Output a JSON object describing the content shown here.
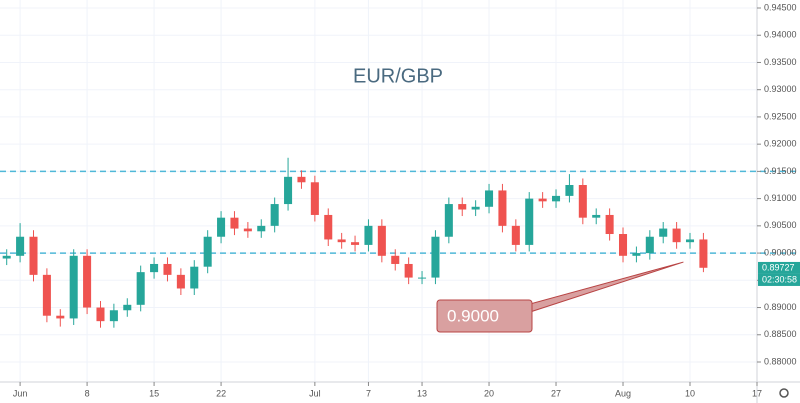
{
  "chart_data": {
    "type": "candlestick",
    "title": "EUR/GBP",
    "x": [
      -1,
      0,
      1,
      2,
      3,
      4,
      5,
      6,
      7,
      8,
      9,
      10,
      11,
      12,
      13,
      14,
      15,
      16,
      17,
      18,
      19,
      20,
      21,
      22,
      23,
      24,
      25,
      26,
      27,
      28,
      29,
      30,
      31,
      32,
      33,
      34,
      35,
      36,
      37,
      38,
      39,
      40,
      41,
      42,
      43,
      44,
      45,
      46,
      47,
      48,
      49,
      50,
      51
    ],
    "open": [
      0.899,
      0.8995,
      0.903,
      0.896,
      0.8885,
      0.888,
      0.8995,
      0.89,
      0.8875,
      0.8895,
      0.8905,
      0.8965,
      0.898,
      0.896,
      0.8935,
      0.8975,
      0.903,
      0.9065,
      0.9045,
      0.904,
      0.905,
      0.909,
      0.914,
      0.913,
      0.907,
      0.9025,
      0.902,
      0.9015,
      0.905,
      0.8995,
      0.898,
      0.8955,
      0.8955,
      0.903,
      0.909,
      0.908,
      0.9085,
      0.9115,
      0.905,
      0.9015,
      0.91,
      0.9095,
      0.9105,
      0.9125,
      0.9065,
      0.907,
      0.9035,
      0.8995,
      0.9,
      0.903,
      0.9045,
      0.902,
      0.9025
    ],
    "high": [
      0.9007,
      0.9055,
      0.9042,
      0.8972,
      0.8897,
      0.9007,
      0.9007,
      0.8912,
      0.8907,
      0.8917,
      0.8977,
      0.8992,
      0.8992,
      0.8972,
      0.8987,
      0.9042,
      0.9077,
      0.9077,
      0.9057,
      0.9062,
      0.9102,
      0.9175,
      0.9152,
      0.9142,
      0.9082,
      0.9037,
      0.9032,
      0.9062,
      0.9062,
      0.9007,
      0.8992,
      0.8967,
      0.9042,
      0.9102,
      0.9102,
      0.9097,
      0.9127,
      0.9127,
      0.9062,
      0.9112,
      0.9112,
      0.9117,
      0.9145,
      0.9137,
      0.9082,
      0.9082,
      0.9047,
      0.9012,
      0.9042,
      0.9057,
      0.9057,
      0.9037,
      0.9037
    ],
    "low": [
      0.8978,
      0.8983,
      0.8948,
      0.8873,
      0.8865,
      0.8868,
      0.8888,
      0.8863,
      0.8863,
      0.8883,
      0.8893,
      0.8953,
      0.8948,
      0.8923,
      0.8923,
      0.8963,
      0.9018,
      0.9033,
      0.9028,
      0.9028,
      0.9038,
      0.9078,
      0.9118,
      0.9058,
      0.9013,
      0.9008,
      0.9003,
      0.9003,
      0.8983,
      0.8968,
      0.8943,
      0.8943,
      0.8943,
      0.9018,
      0.9068,
      0.9068,
      0.9073,
      0.9038,
      0.9003,
      0.9003,
      0.9083,
      0.9083,
      0.9093,
      0.9053,
      0.9053,
      0.9023,
      0.8983,
      0.8983,
      0.8988,
      0.9018,
      0.9008,
      0.9008,
      0.8965
    ],
    "close": [
      0.8995,
      0.903,
      0.896,
      0.8885,
      0.888,
      0.8995,
      0.89,
      0.8875,
      0.8895,
      0.8905,
      0.8965,
      0.898,
      0.896,
      0.8935,
      0.8975,
      0.903,
      0.9065,
      0.9045,
      0.904,
      0.905,
      0.909,
      0.914,
      0.913,
      0.907,
      0.9025,
      0.902,
      0.9015,
      0.905,
      0.8995,
      0.898,
      0.8955,
      0.8955,
      0.903,
      0.909,
      0.908,
      0.9085,
      0.9115,
      0.905,
      0.9015,
      0.91,
      0.9095,
      0.9105,
      0.9125,
      0.9065,
      0.907,
      0.9035,
      0.8995,
      0.9,
      0.903,
      0.9045,
      0.902,
      0.9025,
      0.8973
    ],
    "up_color": "#26a69a",
    "down_color": "#ef5350",
    "xlim": [
      -1.5,
      55
    ],
    "xticks": [
      {
        "value": 0,
        "label": "Jun"
      },
      {
        "value": 5,
        "label": "8"
      },
      {
        "value": 10,
        "label": "15"
      },
      {
        "value": 15,
        "label": "22"
      },
      {
        "value": 22,
        "label": "Jul"
      },
      {
        "value": 26,
        "label": "7"
      },
      {
        "value": 30,
        "label": "13"
      },
      {
        "value": 35,
        "label": "20"
      },
      {
        "value": 40,
        "label": "27"
      },
      {
        "value": 45,
        "label": "Aug"
      },
      {
        "value": 50,
        "label": "10"
      },
      {
        "value": 55,
        "label": "17"
      }
    ],
    "ylim": [
      0.88,
      0.945
    ],
    "yticks": [
      {
        "value": 0.88,
        "label": "0.88000"
      },
      {
        "value": 0.885,
        "label": "0.88500"
      },
      {
        "value": 0.89,
        "label": "0.89000"
      },
      {
        "value": 0.895,
        "label": "0.89500"
      },
      {
        "value": 0.9,
        "label": "0.90000"
      },
      {
        "value": 0.905,
        "label": "0.90500"
      },
      {
        "value": 0.91,
        "label": "0.91000"
      },
      {
        "value": 0.915,
        "label": "0.91500"
      },
      {
        "value": 0.92,
        "label": "0.92000"
      },
      {
        "value": 0.925,
        "label": "0.92500"
      },
      {
        "value": 0.93,
        "label": "0.93000"
      },
      {
        "value": 0.935,
        "label": "0.93500"
      },
      {
        "value": 0.94,
        "label": "0.94000"
      },
      {
        "value": 0.945,
        "label": "0.94500"
      }
    ],
    "grid": true,
    "hlines": [
      0.9,
      0.915
    ],
    "hline_color": "#4fb8d8",
    "last_price": {
      "value": 0.89727,
      "label": "0.89727"
    },
    "countdown": "02:30:58",
    "annotation": {
      "text": "0.9000",
      "value": 0.9
    }
  }
}
